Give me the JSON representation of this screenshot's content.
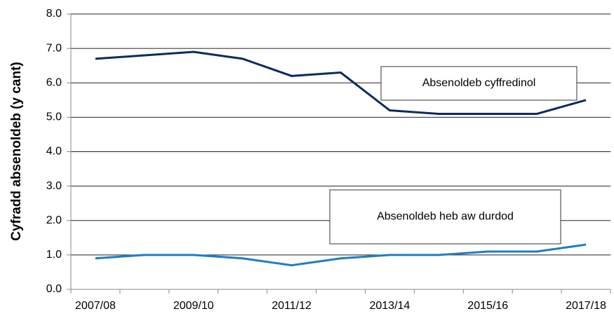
{
  "chart_data": {
    "type": "line",
    "y_axis_label": "Cyfradd absenoldeb (y cant)",
    "categories": [
      "2007/08",
      null,
      "2009/10",
      null,
      "2011/12",
      null,
      "2013/14",
      null,
      "2015/16",
      null,
      "2017/18"
    ],
    "series": [
      {
        "name": "Absenoldeb cyffredinol",
        "color": "#0d2b5e",
        "values": [
          6.7,
          6.8,
          6.9,
          6.7,
          6.2,
          6.3,
          5.2,
          5.1,
          5.1,
          5.1,
          5.5
        ]
      },
      {
        "name": "Absenoldeb heb aw durdod",
        "color": "#1f7cc4",
        "values": [
          0.9,
          1.0,
          1.0,
          0.9,
          0.7,
          0.9,
          1.0,
          1.0,
          1.1,
          1.1,
          1.3
        ]
      }
    ],
    "ylim": [
      0,
      8
    ],
    "yticks": [
      {
        "value": 0,
        "label": "0.0"
      },
      {
        "value": 1,
        "label": "1.0"
      },
      {
        "value": 2,
        "label": "2.0"
      },
      {
        "value": 3,
        "label": "3.0"
      },
      {
        "value": 4,
        "label": "4.0"
      },
      {
        "value": 5,
        "label": "5.0"
      },
      {
        "value": 6,
        "label": "6.0"
      },
      {
        "value": 7,
        "label": "7.0"
      },
      {
        "value": 8,
        "label": "8.0"
      }
    ],
    "grid": true
  }
}
